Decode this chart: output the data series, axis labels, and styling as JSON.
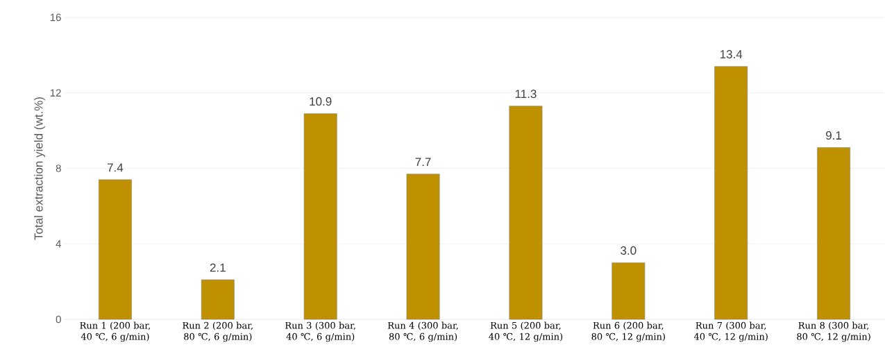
{
  "chart_data": {
    "type": "bar",
    "ylabel": "Total extraction yield (wt.%)",
    "categories": [
      "Run 1 (200 bar, 40 ℃, 6 g/min)",
      "Run 2 (200 bar, 80 ℃, 6 g/min)",
      "Run 3 (300 bar, 40 ℃, 6 g/min)",
      "Run 4 (300 bar, 80 ℃, 6 g/min)",
      "Run 5 (200 bar, 40 ℃, 12 g/min)",
      "Run 6 (200 bar, 80 ℃, 12 g/min)",
      "Run 7 (300 bar, 40 ℃, 12 g/min)",
      "Run 8 (300 bar, 80 ℃, 12 g/min)"
    ],
    "values": [
      7.4,
      2.1,
      10.9,
      7.7,
      11.3,
      3.0,
      13.4,
      9.1
    ],
    "value_labels": [
      "7.4",
      "2.1",
      "10.9",
      "7.7",
      "11.3",
      "3.0",
      "13.4",
      "9.1"
    ],
    "color": "#bf9000",
    "ylim": [
      0,
      16
    ],
    "yticks": [
      0,
      4,
      8,
      12,
      16
    ],
    "grid": "y"
  }
}
